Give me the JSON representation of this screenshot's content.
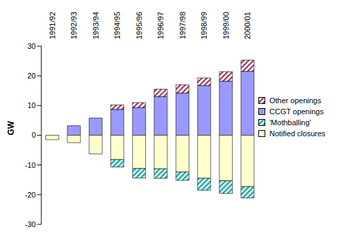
{
  "chart_data": {
    "type": "bar",
    "stacked": true,
    "y_label": "GW",
    "categories": [
      "1991/92",
      "1992/93",
      "1993/94",
      "1994/95",
      "1995/96",
      "1996/97",
      "1997/98",
      "1998/99",
      "1999/00",
      "2000/01"
    ],
    "ylim": [
      -30,
      30
    ],
    "yticks": [
      -30,
      -20,
      -10,
      0,
      10,
      20,
      30
    ],
    "legend": "right",
    "series": [
      {
        "name": "Other openings",
        "color": "#993366",
        "values": [
          0,
          0,
          0,
          1.5,
          1.7,
          2.5,
          2.8,
          2.6,
          3.2,
          3.8
        ]
      },
      {
        "name": "CCGT openings",
        "color": "#9999ff",
        "values": [
          0,
          3.2,
          5.8,
          8.7,
          9.3,
          13,
          14.2,
          16.7,
          18.2,
          21.5
        ]
      },
      {
        "name": "'Mothballing'",
        "color": "#339999",
        "values": [
          0,
          0,
          0,
          -2.5,
          -3.2,
          -3.2,
          -2.8,
          -4,
          -4.3,
          -3.8
        ]
      },
      {
        "name": "Notified closures",
        "color": "#ffffcc",
        "values": [
          -1.5,
          -2.5,
          -6.3,
          -8.2,
          -11.2,
          -11.3,
          -12.4,
          -14.5,
          -15.3,
          -17.3
        ]
      }
    ]
  }
}
